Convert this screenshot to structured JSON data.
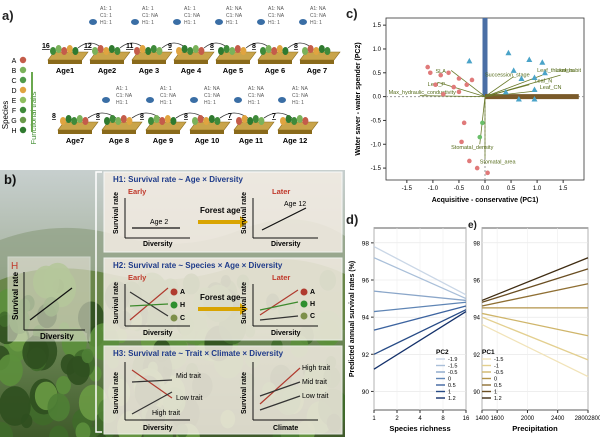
{
  "labels": {
    "a": "a)",
    "b": "b)",
    "c": "c)",
    "d": "d)",
    "e": "e)"
  },
  "panel_a": {
    "species_axis": "Species",
    "traits_axis": "Functional traits",
    "species": [
      "A",
      "B",
      "C",
      "D",
      "E",
      "F",
      "G",
      "H"
    ],
    "row1": [
      {
        "age": "Age1",
        "n": "16"
      },
      {
        "age": "Age2",
        "n": "12"
      },
      {
        "age": "Age 3",
        "n": "11"
      },
      {
        "age": "Age 4",
        "n": "9"
      },
      {
        "age": "Age 5",
        "n": "8"
      },
      {
        "age": "Age 6",
        "n": "8"
      },
      {
        "age": "Age 7",
        "n": "8"
      }
    ],
    "row2": [
      {
        "age": "Age7",
        "n": "8"
      },
      {
        "age": "Age 8",
        "n": "8"
      },
      {
        "age": "Age 9",
        "n": "8"
      },
      {
        "age": "Age 10",
        "n": "8"
      },
      {
        "age": "Age 11",
        "n": "7"
      },
      {
        "age": "Age 12",
        "n": "7"
      }
    ],
    "tree_legend_a": [
      "A1: 1",
      "C1: 1",
      "H1: 1"
    ],
    "tree_legend_b": [
      "A1: 1",
      "C1: NA",
      "H1: 1"
    ],
    "tree_legend_c": [
      "A1: NA",
      "C1: NA",
      "H1: 1"
    ]
  },
  "panel_b": {
    "h_label": "H",
    "y_axis": "Survival rate",
    "x_diversity": "Diversity",
    "x_climate": "Climate",
    "h1": {
      "title": "H1: Survival rate ~ Age × Diversity",
      "early": "Early",
      "later": "Later",
      "age2": "Age 2",
      "age12": "Age 12",
      "arrow": "Forest age"
    },
    "h2": {
      "title": "H2: Survival rate ~ Species × Age × Diversity",
      "early": "Early",
      "later": "Later",
      "arrow": "Forest age",
      "sp": [
        "A",
        "H",
        "C"
      ]
    },
    "h3": {
      "title": "H3: Survival rate ~ Trait × Climate × Diversity",
      "mid": "Mid trait",
      "low": "Low trait",
      "high": "High trait"
    }
  },
  "panel_c": {
    "xlabel": "Acquisitive - conservative (PC1)",
    "ylabel": "Water saver - water spender (PC2)",
    "xticks": [
      "-1.5",
      "-1.0",
      "-0.5",
      "0.0",
      "0.5",
      "1.0",
      "1.5"
    ],
    "yticks": [
      "1.5",
      "1.0",
      "0.5",
      "0.0",
      "-0.5",
      "-1.0",
      "-1.5"
    ],
    "trait_labels": [
      "Leaf_thickness",
      "Leaf_habit",
      "Succession_stage",
      "Leaf_N",
      "Leaf_CN",
      "SLA",
      "Leaf_P",
      "Max_hydraulic_conductivity",
      "Stomatal_density",
      "Stomatal_area"
    ]
  },
  "panel_d": {
    "ylabel": "Predicted annual survival rates (%)",
    "xlabel": "Species richness",
    "yticks": [
      "98",
      "96",
      "94",
      "92",
      "90"
    ],
    "xticks": [
      "1",
      "2",
      "4",
      "8",
      "16"
    ],
    "legend_title": "PC2",
    "legend": [
      "-1.9",
      "-1.5",
      "-0.5",
      "0",
      "0.5",
      "1",
      "1.2"
    ]
  },
  "panel_e": {
    "xlabel": "Precipitation",
    "yticks": [
      "98",
      "96",
      "94",
      "92",
      "90"
    ],
    "xticks": [
      "1400",
      "1600",
      "2000",
      "2400",
      "28002800"
    ],
    "legend_title": "PC1",
    "legend": [
      "-1.5",
      "-1",
      "-0.5",
      "0",
      "0.5",
      "1",
      "1.2"
    ]
  },
  "chart_data": [
    {
      "type": "scatter",
      "title": "",
      "xlabel": "Acquisitive - conservative (PC1)",
      "ylabel": "Water saver - water spender (PC2)",
      "xlim": [
        -1.9,
        1.9
      ],
      "ylim": [
        -1.75,
        1.65
      ],
      "series": [
        {
          "name": "group-red",
          "points": [
            [
              -1.1,
              0.62
            ],
            [
              -1.05,
              0.5
            ],
            [
              -0.85,
              0.45
            ],
            [
              -0.7,
              0.5
            ],
            [
              -0.5,
              0.38
            ],
            [
              -0.6,
              0.2
            ],
            [
              -0.95,
              0.25
            ],
            [
              -0.8,
              0.05
            ],
            [
              -0.5,
              0.1
            ],
            [
              -0.35,
              0.25
            ],
            [
              -0.25,
              0.35
            ],
            [
              -0.4,
              -0.55
            ],
            [
              -0.45,
              -0.95
            ],
            [
              -0.3,
              -1.35
            ],
            [
              -0.15,
              -1.5
            ],
            [
              0.05,
              -1.6
            ]
          ]
        },
        {
          "name": "group-blue",
          "points": [
            [
              -0.3,
              0.75
            ],
            [
              0.45,
              0.92
            ],
            [
              0.85,
              0.78
            ],
            [
              0.7,
              0.38
            ],
            [
              0.95,
              0.4
            ],
            [
              1.15,
              0.5
            ],
            [
              0.95,
              0.15
            ],
            [
              0.65,
              -0.05
            ],
            [
              0.95,
              -0.05
            ],
            [
              0.4,
              0.1
            ],
            [
              0.55,
              0.55
            ],
            [
              1.1,
              0.72
            ]
          ]
        },
        {
          "name": "group-green",
          "points": [
            [
              -0.05,
              -0.55
            ],
            [
              -0.1,
              -0.85
            ]
          ]
        }
      ]
    },
    {
      "type": "line",
      "xlabel": "Species richness",
      "ylabel": "Predicted annual survival rates (%)",
      "x": [
        1,
        16
      ],
      "ylim": [
        89,
        98.8
      ],
      "series": [
        {
          "name": "-1.9",
          "values": [
            97.8,
            95.2
          ]
        },
        {
          "name": "-1.5",
          "values": [
            97.2,
            95.0
          ]
        },
        {
          "name": "-0.5",
          "values": [
            95.4,
            94.9
          ]
        },
        {
          "name": "0",
          "values": [
            94.3,
            94.8
          ]
        },
        {
          "name": "0.5",
          "values": [
            93.3,
            94.6
          ]
        },
        {
          "name": "1",
          "values": [
            92.0,
            94.4
          ]
        },
        {
          "name": "1.2",
          "values": [
            91.2,
            94.3
          ]
        }
      ]
    },
    {
      "type": "line",
      "xlabel": "Precipitation",
      "x": [
        1400,
        2800
      ],
      "ylim": [
        89,
        98.8
      ],
      "series": [
        {
          "name": "-1.5",
          "values": [
            93.6,
            90.8
          ]
        },
        {
          "name": "-1",
          "values": [
            94.0,
            91.7
          ]
        },
        {
          "name": "-0.5",
          "values": [
            94.2,
            93.0
          ]
        },
        {
          "name": "0",
          "values": [
            94.5,
            94.5
          ]
        },
        {
          "name": "0.5",
          "values": [
            94.6,
            95.8
          ]
        },
        {
          "name": "1",
          "values": [
            94.8,
            96.6
          ]
        },
        {
          "name": "1.2",
          "values": [
            94.9,
            97.2
          ]
        }
      ]
    }
  ]
}
